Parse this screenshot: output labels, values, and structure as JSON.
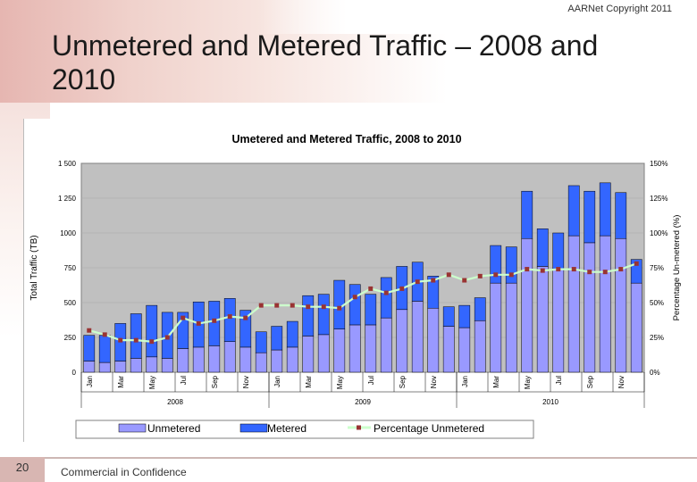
{
  "slide": {
    "copyright": "AARNet Copyright 2011",
    "title": "Unmetered and Metered Traffic – 2008 and 2010",
    "slide_number": "20",
    "footer": "Commercial in Confidence"
  },
  "colors": {
    "plot_bg": "#c0c0c0",
    "unmetered": "#9999ff",
    "metered": "#3366ff",
    "line": "#ccffcc",
    "marker": "#993333"
  },
  "chart_data": {
    "type": "bar",
    "stacked": true,
    "title": "Umetered and Metered Traffic, 2008 to 2010",
    "ylabel": "Total Traffic (TB)",
    "y2label": "Percentage Un-metered (%)",
    "ylim": [
      0,
      1500
    ],
    "y2lim": [
      0,
      150
    ],
    "yticks": [
      "0",
      "250",
      "500",
      "750",
      "1000",
      "1 250",
      "1 500"
    ],
    "y2ticks": [
      "0%",
      "25%",
      "50%",
      "75%",
      "100%",
      "125%",
      "150%"
    ],
    "month_labels": [
      "Jan",
      "Mar",
      "May",
      "Jul",
      "Sep",
      "Nov",
      "Jan",
      "Mar",
      "May",
      "Jul",
      "Sep",
      "Nov",
      "Jan",
      "Mar",
      "May",
      "Jul",
      "Sep",
      "Nov"
    ],
    "year_labels": [
      "2008",
      "2009",
      "2010"
    ],
    "categories": [
      "Jan 2008",
      "Feb 2008",
      "Mar 2008",
      "Apr 2008",
      "May 2008",
      "Jun 2008",
      "Jul 2008",
      "Aug 2008",
      "Sep 2008",
      "Oct 2008",
      "Nov 2008",
      "Dec 2008",
      "Jan 2009",
      "Feb 2009",
      "Mar 2009",
      "Apr 2009",
      "May 2009",
      "Jun 2009",
      "Jul 2009",
      "Aug 2009",
      "Sep 2009",
      "Oct 2009",
      "Nov 2009",
      "Dec 2009",
      "Jan 2010",
      "Feb 2010",
      "Mar 2010",
      "Apr 2010",
      "May 2010",
      "Jun 2010",
      "Jul 2010",
      "Aug 2010",
      "Sep 2010",
      "Oct 2010",
      "Nov 2010",
      "Dec 2010"
    ],
    "series": [
      {
        "name": "Unmetered",
        "values": [
          80,
          70,
          80,
          100,
          110,
          100,
          170,
          180,
          190,
          220,
          180,
          140,
          160,
          180,
          260,
          270,
          310,
          340,
          340,
          390,
          450,
          510,
          460,
          330,
          320,
          370,
          640,
          640,
          960,
          760,
          740,
          980,
          930,
          980,
          960,
          640
        ]
      },
      {
        "name": "Metered",
        "values": [
          185,
          195,
          270,
          320,
          370,
          330,
          260,
          325,
          320,
          310,
          265,
          150,
          170,
          185,
          290,
          290,
          350,
          290,
          220,
          290,
          310,
          280,
          230,
          140,
          160,
          165,
          270,
          260,
          340,
          270,
          260,
          360,
          370,
          380,
          330,
          170
        ]
      },
      {
        "name": "Percentage Unmetered",
        "values": [
          30,
          27,
          23,
          23,
          22,
          25,
          39,
          35,
          37,
          40,
          39,
          48,
          48,
          48,
          47,
          47,
          46,
          54,
          60,
          57,
          60,
          65,
          66,
          70,
          66,
          69,
          70,
          70,
          74,
          73,
          74,
          74,
          72,
          72,
          74,
          78
        ]
      }
    ],
    "legend": "bottom"
  }
}
